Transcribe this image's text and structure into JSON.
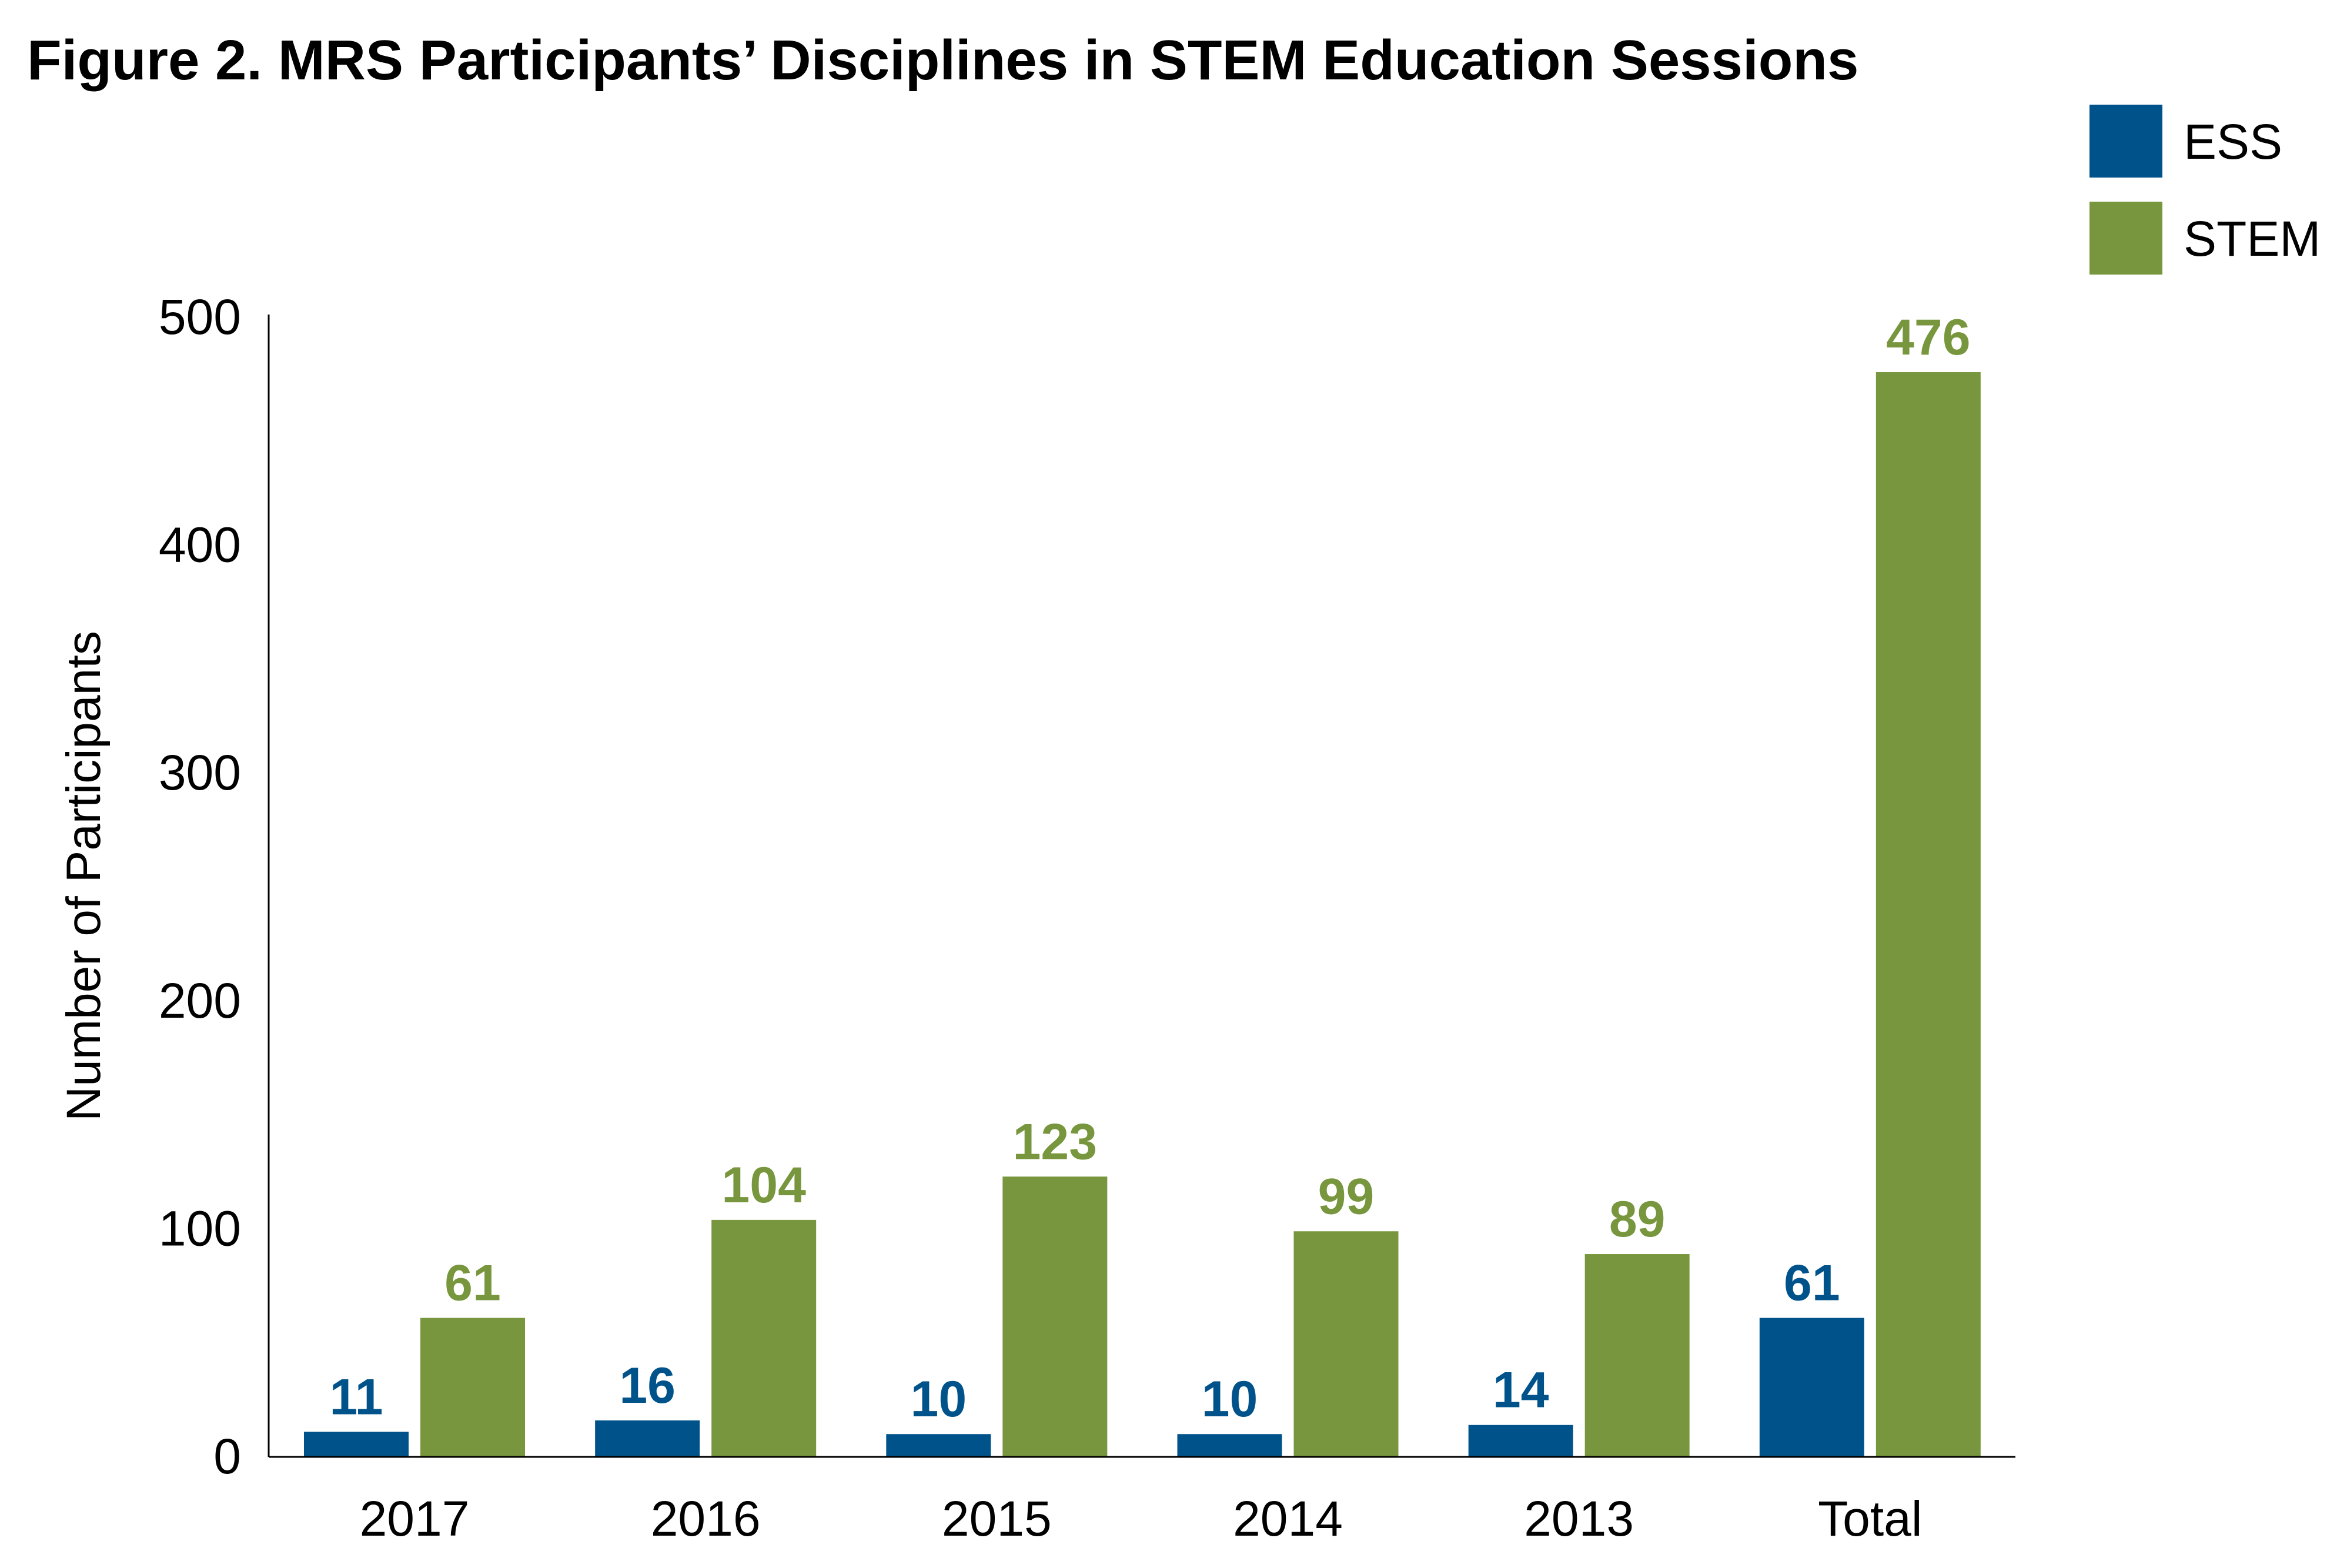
{
  "chart_data": {
    "type": "bar",
    "title": "Figure 2. MRS Participants’ Disciplines in STEM Education Sessions",
    "xlabel": "",
    "ylabel": "Number of Participants",
    "categories": [
      "2017",
      "2016",
      "2015",
      "2014",
      "2013",
      "Total"
    ],
    "series": [
      {
        "name": "ESS",
        "color": "#00538a",
        "values": [
          11,
          16,
          10,
          10,
          14,
          61
        ]
      },
      {
        "name": "STEM",
        "color": "#77963d",
        "values": [
          61,
          104,
          123,
          99,
          89,
          476
        ]
      }
    ],
    "ylim": [
      0,
      500
    ],
    "yticks": [
      "0",
      "100",
      "200",
      "300",
      "400",
      "500"
    ],
    "ytick_values": [
      0,
      100,
      200,
      300,
      400,
      500
    ],
    "grid": false,
    "legend_position": "top-right",
    "data_labels": true
  }
}
